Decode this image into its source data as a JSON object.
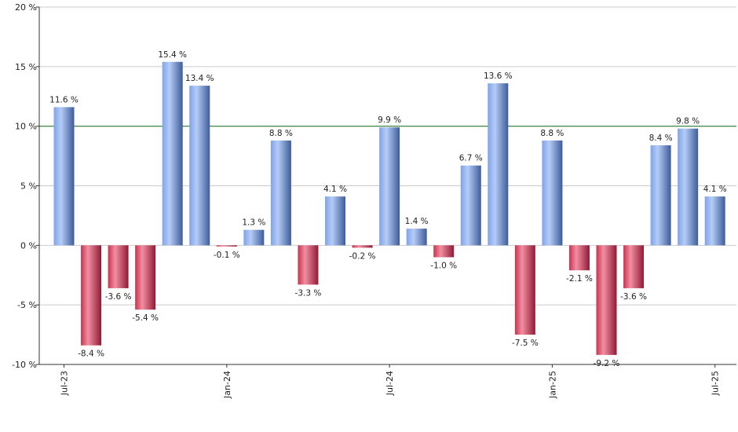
{
  "chart_data": {
    "type": "bar",
    "title": "",
    "xlabel": "",
    "ylabel": "",
    "ylim": [
      -10,
      20
    ],
    "y_ticks": [
      "20 %",
      "15 %",
      "10 %",
      "5 %",
      "0 %",
      "-5 %",
      "-10 %"
    ],
    "y_tick_values": [
      20,
      15,
      10,
      5,
      0,
      -5,
      -10
    ],
    "x_tick_labels": [
      {
        "label": "Jul-23",
        "index": 0
      },
      {
        "label": "Jan-24",
        "index": 6
      },
      {
        "label": "Jul-24",
        "index": 12
      },
      {
        "label": "Jan-25",
        "index": 18
      },
      {
        "label": "Jul-25",
        "index": 24
      }
    ],
    "values": [
      11.6,
      -8.4,
      -3.6,
      -5.4,
      15.4,
      13.4,
      -0.1,
      1.3,
      8.8,
      -3.3,
      4.1,
      -0.2,
      9.9,
      1.4,
      -1.0,
      6.7,
      13.6,
      -7.5,
      8.8,
      -2.1,
      -9.2,
      -3.6,
      8.4,
      9.8,
      4.1
    ],
    "data_labels": [
      "11.6 %",
      "-8.4 %",
      "-3.6 %",
      "-5.4 %",
      "15.4 %",
      "13.4 %",
      "-0.1 %",
      "1.3 %",
      "8.8 %",
      "-3.3 %",
      "4.1 %",
      "-0.2 %",
      "9.9 %",
      "1.4 %",
      "-1.0 %",
      "6.7 %",
      "13.6 %",
      "-7.5 %",
      "8.8 %",
      "-2.1 %",
      "-9.2 %",
      "-3.6 %",
      "8.4 %",
      "9.8 %",
      "4.1 %"
    ],
    "reference_line": 10,
    "grid": true,
    "legend": "none",
    "colors": {
      "positive_light": "#a9c4f5",
      "positive_dark": "#3f5f9e",
      "negative_light": "#f07a93",
      "negative_dark": "#9e1f3c",
      "reference_line": "#2e7d32",
      "grid": "#cccccc"
    }
  }
}
